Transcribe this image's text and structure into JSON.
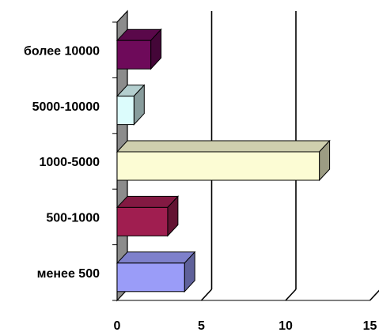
{
  "chart_data": {
    "type": "bar",
    "orientation": "horizontal",
    "style": "3d",
    "title": "",
    "xlabel": "",
    "ylabel": "",
    "categories": [
      "более 10000",
      "5000-10000",
      "1000-5000",
      "500-1000",
      "менее 500"
    ],
    "values": [
      2,
      1,
      12,
      3,
      4
    ],
    "colors": [
      "#6e0a5a",
      "#dcfcfc",
      "#fcfcd4",
      "#a01e50",
      "#9a9cf8"
    ],
    "xlim": [
      0,
      15
    ],
    "x_ticks": [
      "0",
      "5",
      "10",
      "15"
    ],
    "grid": true,
    "legend": "none"
  }
}
